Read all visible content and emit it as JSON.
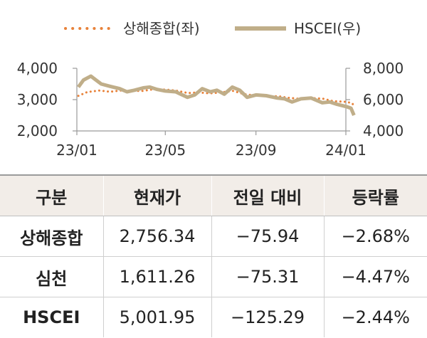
{
  "chart_data": {
    "type": "line",
    "x_ticks": [
      "23/01",
      "23/05",
      "23/09",
      "24/01"
    ],
    "y_left": {
      "ticks": [
        "2,000",
        "3,000",
        "4,000"
      ],
      "range": [
        2000,
        4000
      ]
    },
    "y_right": {
      "ticks": [
        "4,000",
        "6,000",
        "8,000"
      ],
      "range": [
        4000,
        8000
      ]
    },
    "series": [
      {
        "name": "상해종합(좌)",
        "axis": "left",
        "style": "dotted",
        "color": "#e8823a",
        "points": [
          [
            "2023-01-03",
            3120
          ],
          [
            "2023-01-15",
            3240
          ],
          [
            "2023-02-01",
            3290
          ],
          [
            "2023-02-15",
            3250
          ],
          [
            "2023-03-01",
            3290
          ],
          [
            "2023-03-15",
            3280
          ],
          [
            "2023-04-01",
            3280
          ],
          [
            "2023-04-15",
            3330
          ],
          [
            "2023-05-01",
            3320
          ],
          [
            "2023-05-15",
            3290
          ],
          [
            "2023-06-01",
            3210
          ],
          [
            "2023-06-15",
            3230
          ],
          [
            "2023-07-01",
            3200
          ],
          [
            "2023-07-15",
            3230
          ],
          [
            "2023-08-01",
            3280
          ],
          [
            "2023-08-15",
            3180
          ],
          [
            "2023-09-01",
            3130
          ],
          [
            "2023-09-15",
            3110
          ],
          [
            "2023-10-01",
            3110
          ],
          [
            "2023-10-15",
            3060
          ],
          [
            "2023-11-01",
            3020
          ],
          [
            "2023-11-15",
            3050
          ],
          [
            "2023-12-01",
            3030
          ],
          [
            "2023-12-15",
            2950
          ],
          [
            "2024-01-02",
            2930
          ],
          [
            "2024-01-10",
            2880
          ],
          [
            "2024-01-12",
            2756.34
          ]
        ]
      },
      {
        "name": "HSCEI(우)",
        "axis": "right",
        "style": "solid",
        "color": "#c0ae89",
        "points": [
          [
            "2023-01-03",
            6800
          ],
          [
            "2023-01-10",
            7250
          ],
          [
            "2023-01-20",
            7500
          ],
          [
            "2023-01-27",
            7250
          ],
          [
            "2023-02-03",
            7000
          ],
          [
            "2023-02-15",
            6850
          ],
          [
            "2023-02-28",
            6700
          ],
          [
            "2023-03-10",
            6500
          ],
          [
            "2023-03-20",
            6600
          ],
          [
            "2023-04-01",
            6750
          ],
          [
            "2023-04-10",
            6800
          ],
          [
            "2023-04-20",
            6650
          ],
          [
            "2023-05-01",
            6550
          ],
          [
            "2023-05-15",
            6500
          ],
          [
            "2023-05-31",
            6150
          ],
          [
            "2023-06-10",
            6300
          ],
          [
            "2023-06-20",
            6700
          ],
          [
            "2023-07-01",
            6500
          ],
          [
            "2023-07-10",
            6600
          ],
          [
            "2023-07-20",
            6350
          ],
          [
            "2023-07-31",
            6800
          ],
          [
            "2023-08-10",
            6600
          ],
          [
            "2023-08-20",
            6150
          ],
          [
            "2023-09-01",
            6300
          ],
          [
            "2023-09-15",
            6250
          ],
          [
            "2023-09-30",
            6100
          ],
          [
            "2023-10-10",
            6050
          ],
          [
            "2023-10-20",
            5850
          ],
          [
            "2023-11-01",
            6050
          ],
          [
            "2023-11-15",
            6100
          ],
          [
            "2023-11-30",
            5800
          ],
          [
            "2023-12-10",
            5850
          ],
          [
            "2023-12-20",
            5700
          ],
          [
            "2024-01-02",
            5550
          ],
          [
            "2024-01-08",
            5450
          ],
          [
            "2024-01-12",
            5001.95
          ]
        ]
      }
    ]
  },
  "table": {
    "headers": [
      "구분",
      "현재가",
      "전일 대비",
      "등락률"
    ],
    "rows": [
      {
        "name": "상해종합",
        "price": "2,756.34",
        "change": "−75.94",
        "rate": "−2.68%"
      },
      {
        "name": "심천",
        "price": "1,611.26",
        "change": "−75.31",
        "rate": "−4.47%"
      },
      {
        "name": "HSCEI",
        "price": "5,001.95",
        "change": "−125.29",
        "rate": "−2.44%"
      }
    ]
  }
}
